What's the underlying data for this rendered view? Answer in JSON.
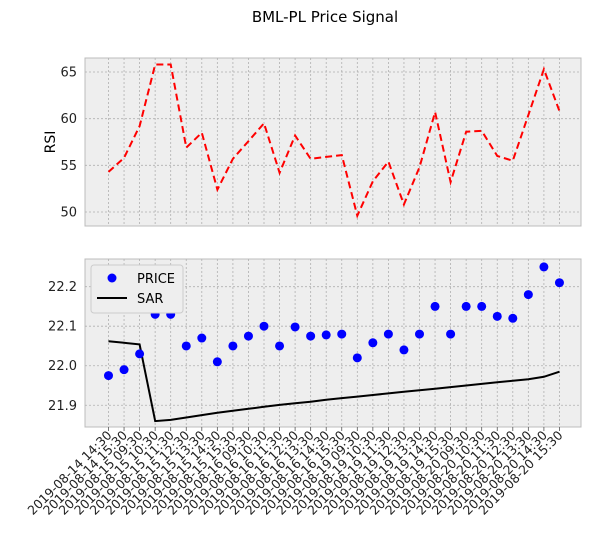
{
  "title": "BML-PL Price Signal",
  "chart_data": [
    {
      "type": "line",
      "name": "rsi-panel",
      "ylabel": "RSI",
      "ylim": [
        48.5,
        66.5
      ],
      "yticks": [
        50,
        55,
        60,
        65
      ],
      "grid": true,
      "series": [
        {
          "name": "",
          "style": "dashed",
          "color": "#ff0000",
          "values": [
            54.3,
            55.8,
            59.2,
            65.8,
            65.8,
            56.9,
            58.5,
            52.4,
            55.7,
            57.6,
            59.5,
            54.2,
            58.2,
            55.7,
            55.9,
            56.1,
            49.6,
            53.3,
            55.4,
            50.8,
            54.8,
            60.7,
            53.2,
            58.6,
            58.7,
            56.0,
            55.5,
            60.4,
            65.3,
            60.8
          ]
        }
      ]
    },
    {
      "type": "scatter",
      "name": "price-panel",
      "ylim": [
        21.845,
        22.27
      ],
      "yticks": [
        21.9,
        22.0,
        22.1,
        22.2
      ],
      "grid": true,
      "legend_position": "top-left",
      "series": [
        {
          "name": "PRICE",
          "kind": "scatter",
          "color": "#0000ff",
          "values": [
            21.975,
            21.99,
            22.03,
            22.13,
            22.13,
            22.05,
            22.07,
            22.01,
            22.05,
            22.075,
            22.1,
            22.05,
            22.098,
            22.075,
            22.078,
            22.08,
            22.02,
            22.058,
            22.08,
            22.04,
            22.08,
            22.15,
            22.08,
            22.15,
            22.15,
            22.125,
            22.12,
            22.18,
            22.25,
            22.21
          ]
        },
        {
          "name": "SAR",
          "kind": "line",
          "color": "#000000",
          "values": [
            22.062,
            22.058,
            22.054,
            21.86,
            21.863,
            21.869,
            21.875,
            21.881,
            21.886,
            21.891,
            21.896,
            21.901,
            21.905,
            21.909,
            21.914,
            21.918,
            21.922,
            21.926,
            21.93,
            21.934,
            21.938,
            21.942,
            21.946,
            21.95,
            21.954,
            21.958,
            21.962,
            21.966,
            21.972,
            21.985
          ]
        }
      ]
    }
  ],
  "x_labels": [
    "2019-08-14 14:30",
    "2019-08-14 15:30",
    "2019-08-15 09:30",
    "2019-08-15 10:30",
    "2019-08-15 11:30",
    "2019-08-15 12:30",
    "2019-08-15 13:30",
    "2019-08-15 14:30",
    "2019-08-15 15:30",
    "2019-08-16 09:30",
    "2019-08-16 10:30",
    "2019-08-16 11:30",
    "2019-08-16 12:30",
    "2019-08-16 13:30",
    "2019-08-16 14:30",
    "2019-08-16 15:30",
    "2019-08-19 09:30",
    "2019-08-19 10:30",
    "2019-08-19 11:30",
    "2019-08-19 12:30",
    "2019-08-19 13:30",
    "2019-08-19 14:30",
    "2019-08-19 15:30",
    "2019-08-20 09:30",
    "2019-08-20 10:30",
    "2019-08-20 11:30",
    "2019-08-20 12:30",
    "2019-08-20 13:30",
    "2019-08-20 14:30",
    "2019-08-20 15:30"
  ]
}
